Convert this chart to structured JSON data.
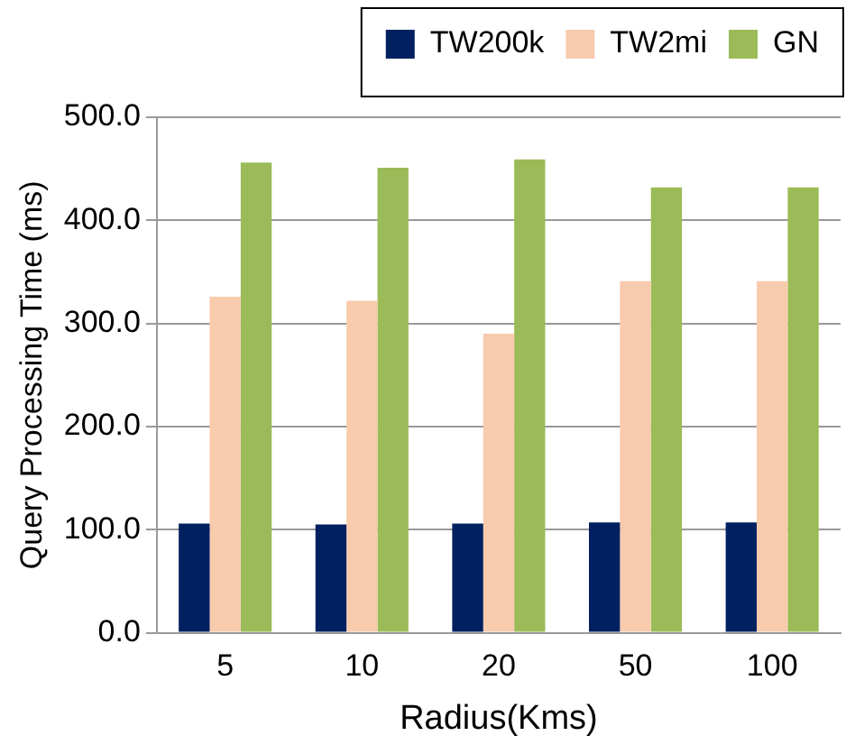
{
  "chart_data": {
    "type": "bar",
    "xlabel": "Radius(Kms)",
    "ylabel": "Query Processing Time (ms)",
    "categories": [
      "5",
      "10",
      "20",
      "50",
      "100"
    ],
    "series": [
      {
        "name": "TW200k",
        "color": "#002060",
        "values": [
          106,
          105,
          106,
          107,
          107
        ]
      },
      {
        "name": "TW2mi",
        "color": "#f8cbad",
        "values": [
          326,
          322,
          290,
          341,
          341
        ]
      },
      {
        "name": "GN",
        "color": "#9bbb59",
        "values": [
          456,
          451,
          459,
          432,
          432
        ]
      }
    ],
    "ylim": [
      0,
      500
    ],
    "yticks": [
      {
        "value": 0,
        "label": "0.0"
      },
      {
        "value": 100,
        "label": "100.0"
      },
      {
        "value": 200,
        "label": "200.0"
      },
      {
        "value": 300,
        "label": "300.0"
      },
      {
        "value": 400,
        "label": "400.0"
      },
      {
        "value": 500,
        "label": "500.0"
      }
    ],
    "grid": "y",
    "legend": "top right"
  }
}
